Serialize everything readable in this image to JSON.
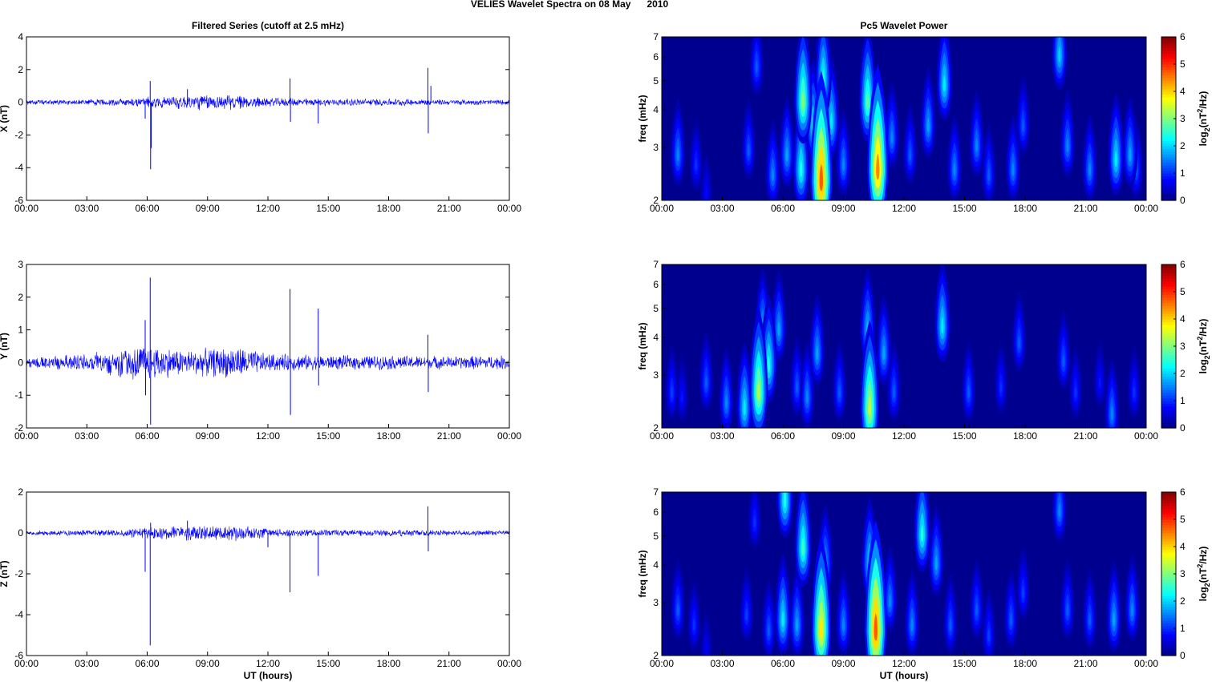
{
  "figure": {
    "suptitle": "VELIES Wavelet Spectra on 08 May      2010",
    "left_title": "Filtered Series (cutoff at 2.5 mHz)",
    "right_title": "Pc5 Wavelet Power",
    "xlabel": "UT (hours)",
    "freq_label": "freq (mHz)",
    "colorbar_label": "log2(nT2/Hz)",
    "colormap": "jet",
    "line_color": "#0000ff"
  },
  "chart_data": [
    {
      "type": "line",
      "ylabel": "X (nT)",
      "x_ticks": [
        "00:00",
        "03:00",
        "06:00",
        "09:00",
        "12:00",
        "15:00",
        "18:00",
        "21:00",
        "00:00"
      ],
      "xlim": [
        0,
        24
      ],
      "ylim": [
        -6,
        4
      ],
      "y_ticks": [
        -6,
        -4,
        -2,
        0,
        2,
        4
      ],
      "baseline_amplitude": [
        [
          0,
          0.12
        ],
        [
          4.5,
          0.2
        ],
        [
          6,
          0.3
        ],
        [
          8.5,
          0.45
        ],
        [
          10.5,
          0.4
        ],
        [
          12,
          0.25
        ],
        [
          15,
          0.2
        ],
        [
          18,
          0.2
        ],
        [
          21,
          0.15
        ],
        [
          24,
          0.15
        ]
      ],
      "spikes": [
        {
          "x": 5.9,
          "y": -1.0
        },
        {
          "x": 6.15,
          "y": 1.3
        },
        {
          "x": 6.17,
          "y": -4.1
        },
        {
          "x": 6.2,
          "y": -2.8
        },
        {
          "x": 8.0,
          "y": 0.8
        },
        {
          "x": 13.1,
          "y": 1.45
        },
        {
          "x": 13.12,
          "y": -1.2
        },
        {
          "x": 14.5,
          "y": -1.3
        },
        {
          "x": 19.95,
          "y": 2.1
        },
        {
          "x": 19.97,
          "y": -1.9
        },
        {
          "x": 20.1,
          "y": 1.0
        }
      ]
    },
    {
      "type": "line",
      "ylabel": "Y (nT)",
      "x_ticks": [
        "00:00",
        "03:00",
        "06:00",
        "09:00",
        "12:00",
        "15:00",
        "18:00",
        "21:00",
        "00:00"
      ],
      "xlim": [
        0,
        24
      ],
      "ylim": [
        -2,
        3
      ],
      "y_ticks": [
        -2,
        -1,
        0,
        1,
        2,
        3
      ],
      "baseline_amplitude": [
        [
          0,
          0.15
        ],
        [
          3,
          0.25
        ],
        [
          5,
          0.45
        ],
        [
          6,
          0.5
        ],
        [
          8,
          0.35
        ],
        [
          10.5,
          0.45
        ],
        [
          12,
          0.25
        ],
        [
          15,
          0.2
        ],
        [
          18,
          0.2
        ],
        [
          21,
          0.18
        ],
        [
          24,
          0.2
        ]
      ],
      "spikes": [
        {
          "x": 5.9,
          "y": 1.3
        },
        {
          "x": 5.92,
          "y": -1.0
        },
        {
          "x": 6.15,
          "y": 2.6
        },
        {
          "x": 6.17,
          "y": -1.9
        },
        {
          "x": 13.1,
          "y": 2.25
        },
        {
          "x": 13.12,
          "y": -1.6
        },
        {
          "x": 14.5,
          "y": 1.65
        },
        {
          "x": 14.52,
          "y": -0.7
        },
        {
          "x": 19.95,
          "y": 0.85
        },
        {
          "x": 19.97,
          "y": -0.9
        },
        {
          "x": 24,
          "y": -0.35
        }
      ]
    },
    {
      "type": "line",
      "ylabel": "Z (nT)",
      "x_ticks": [
        "00:00",
        "03:00",
        "06:00",
        "09:00",
        "12:00",
        "15:00",
        "18:00",
        "21:00",
        "00:00"
      ],
      "xlim": [
        0,
        24
      ],
      "ylim": [
        -6,
        2
      ],
      "y_ticks": [
        -6,
        -4,
        -2,
        0,
        2
      ],
      "baseline_amplitude": [
        [
          0,
          0.1
        ],
        [
          4.5,
          0.15
        ],
        [
          6,
          0.25
        ],
        [
          8,
          0.35
        ],
        [
          10.5,
          0.35
        ],
        [
          12,
          0.2
        ],
        [
          15,
          0.15
        ],
        [
          18,
          0.15
        ],
        [
          21,
          0.12
        ],
        [
          24,
          0.12
        ]
      ],
      "spikes": [
        {
          "x": 5.9,
          "y": -1.9
        },
        {
          "x": 6.15,
          "y": -5.5
        },
        {
          "x": 6.17,
          "y": 0.5
        },
        {
          "x": 8.0,
          "y": 0.6
        },
        {
          "x": 12.0,
          "y": -0.7
        },
        {
          "x": 13.1,
          "y": -2.9
        },
        {
          "x": 14.5,
          "y": -2.1
        },
        {
          "x": 19.95,
          "y": 1.3
        },
        {
          "x": 19.97,
          "y": -0.9
        }
      ]
    },
    {
      "type": "heatmap",
      "ylabel": "freq (mHz)",
      "x_ticks": [
        "00:00",
        "03:00",
        "06:00",
        "09:00",
        "12:00",
        "15:00",
        "18:00",
        "21:00",
        "00:00"
      ],
      "xlim": [
        0,
        24
      ],
      "ylim": [
        2,
        7
      ],
      "y_ticks": [
        2,
        3,
        4,
        5,
        6,
        7
      ],
      "yscale": "log",
      "clim": [
        0,
        6
      ],
      "colorbar_ticks": [
        0,
        1,
        2,
        3,
        4,
        5,
        6
      ],
      "blobs": [
        {
          "t": 0.8,
          "f": 2.8,
          "p": 1.8
        },
        {
          "t": 1.7,
          "f": 2.6,
          "p": 1.2
        },
        {
          "t": 2.2,
          "f": 2.1,
          "p": 0.9
        },
        {
          "t": 4.3,
          "f": 2.9,
          "p": 1.5
        },
        {
          "t": 4.7,
          "f": 5.5,
          "p": 1.5
        },
        {
          "t": 5.5,
          "f": 2.4,
          "p": 1.8
        },
        {
          "t": 6.2,
          "f": 2.8,
          "p": 2.0
        },
        {
          "t": 6.9,
          "f": 2.5,
          "p": 2.8
        },
        {
          "t": 7.0,
          "f": 4.2,
          "p": 3.5
        },
        {
          "t": 7.5,
          "f": 3.5,
          "p": 2.5
        },
        {
          "t": 7.9,
          "f": 2.3,
          "p": 5.5
        },
        {
          "t": 8.0,
          "f": 5.0,
          "p": 2.8
        },
        {
          "t": 8.4,
          "f": 3.6,
          "p": 2.5
        },
        {
          "t": 9.0,
          "f": 2.6,
          "p": 1.8
        },
        {
          "t": 10.2,
          "f": 4.2,
          "p": 3.2
        },
        {
          "t": 10.7,
          "f": 2.5,
          "p": 5.2
        },
        {
          "t": 11.4,
          "f": 3.2,
          "p": 1.8
        },
        {
          "t": 12.3,
          "f": 2.8,
          "p": 1.5
        },
        {
          "t": 13.2,
          "f": 3.5,
          "p": 2.0
        },
        {
          "t": 14.0,
          "f": 4.8,
          "p": 2.5
        },
        {
          "t": 14.5,
          "f": 2.5,
          "p": 1.8
        },
        {
          "t": 15.6,
          "f": 3.0,
          "p": 1.8
        },
        {
          "t": 16.2,
          "f": 2.4,
          "p": 1.5
        },
        {
          "t": 17.4,
          "f": 2.5,
          "p": 1.8
        },
        {
          "t": 17.9,
          "f": 3.5,
          "p": 1.5
        },
        {
          "t": 19.7,
          "f": 6.0,
          "p": 2.3
        },
        {
          "t": 20.1,
          "f": 3.0,
          "p": 1.8
        },
        {
          "t": 21.2,
          "f": 2.5,
          "p": 1.8
        },
        {
          "t": 22.5,
          "f": 2.7,
          "p": 2.5
        },
        {
          "t": 23.2,
          "f": 2.8,
          "p": 2.0
        },
        {
          "t": 23.5,
          "f": 2.5,
          "p": 1.5
        }
      ]
    },
    {
      "type": "heatmap",
      "ylabel": "freq (mHz)",
      "x_ticks": [
        "00:00",
        "03:00",
        "06:00",
        "09:00",
        "12:00",
        "15:00",
        "18:00",
        "21:00",
        "00:00"
      ],
      "xlim": [
        0,
        24
      ],
      "ylim": [
        2,
        7
      ],
      "y_ticks": [
        2,
        3,
        4,
        5,
        6,
        7
      ],
      "yscale": "log",
      "clim": [
        0,
        6
      ],
      "colorbar_ticks": [
        0,
        1,
        2,
        3,
        4,
        5,
        6
      ],
      "blobs": [
        {
          "t": 0.5,
          "f": 2.6,
          "p": 1.3
        },
        {
          "t": 1.0,
          "f": 2.5,
          "p": 1.0
        },
        {
          "t": 2.2,
          "f": 2.8,
          "p": 1.5
        },
        {
          "t": 3.2,
          "f": 2.4,
          "p": 1.8
        },
        {
          "t": 4.1,
          "f": 2.3,
          "p": 2.5
        },
        {
          "t": 4.8,
          "f": 2.6,
          "p": 3.8
        },
        {
          "t": 5.3,
          "f": 3.2,
          "p": 2.8
        },
        {
          "t": 5.0,
          "f": 4.3,
          "p": 2.0
        },
        {
          "t": 5.8,
          "f": 4.2,
          "p": 2.0
        },
        {
          "t": 6.7,
          "f": 2.7,
          "p": 1.5
        },
        {
          "t": 7.2,
          "f": 2.5,
          "p": 1.8
        },
        {
          "t": 7.7,
          "f": 3.5,
          "p": 2.0
        },
        {
          "t": 8.8,
          "f": 2.6,
          "p": 1.5
        },
        {
          "t": 10.2,
          "f": 4.2,
          "p": 2.2
        },
        {
          "t": 10.3,
          "f": 2.3,
          "p": 4.0
        },
        {
          "t": 11.0,
          "f": 3.5,
          "p": 2.0
        },
        {
          "t": 11.5,
          "f": 2.6,
          "p": 1.5
        },
        {
          "t": 13.9,
          "f": 4.3,
          "p": 2.5
        },
        {
          "t": 15.2,
          "f": 2.6,
          "p": 1.5
        },
        {
          "t": 16.8,
          "f": 2.7,
          "p": 1.2
        },
        {
          "t": 17.7,
          "f": 3.8,
          "p": 1.5
        },
        {
          "t": 19.9,
          "f": 3.3,
          "p": 1.5
        },
        {
          "t": 20.5,
          "f": 2.6,
          "p": 1.2
        },
        {
          "t": 21.7,
          "f": 2.8,
          "p": 1.0
        },
        {
          "t": 22.3,
          "f": 2.2,
          "p": 1.8
        },
        {
          "t": 23.4,
          "f": 2.6,
          "p": 1.2
        }
      ]
    },
    {
      "type": "heatmap",
      "ylabel": "freq (mHz)",
      "x_ticks": [
        "00:00",
        "03:00",
        "06:00",
        "09:00",
        "12:00",
        "15:00",
        "18:00",
        "21:00",
        "00:00"
      ],
      "xlim": [
        0,
        24
      ],
      "ylim": [
        2,
        7
      ],
      "y_ticks": [
        2,
        3,
        4,
        5,
        6,
        7
      ],
      "yscale": "log",
      "clim": [
        0,
        6
      ],
      "colorbar_ticks": [
        0,
        1,
        2,
        3,
        4,
        5,
        6
      ],
      "blobs": [
        {
          "t": 0.8,
          "f": 2.8,
          "p": 1.5
        },
        {
          "t": 1.6,
          "f": 2.5,
          "p": 1.2
        },
        {
          "t": 2.2,
          "f": 2.1,
          "p": 0.8
        },
        {
          "t": 4.2,
          "f": 2.7,
          "p": 1.3
        },
        {
          "t": 4.6,
          "f": 5.5,
          "p": 1.2
        },
        {
          "t": 5.3,
          "f": 2.4,
          "p": 1.5
        },
        {
          "t": 6.0,
          "f": 2.6,
          "p": 2.5
        },
        {
          "t": 6.1,
          "f": 6.5,
          "p": 2.8
        },
        {
          "t": 6.7,
          "f": 2.5,
          "p": 2.0
        },
        {
          "t": 7.0,
          "f": 4.5,
          "p": 3.0
        },
        {
          "t": 7.9,
          "f": 2.4,
          "p": 4.5
        },
        {
          "t": 8.1,
          "f": 4.0,
          "p": 2.0
        },
        {
          "t": 9.0,
          "f": 2.5,
          "p": 1.8
        },
        {
          "t": 10.3,
          "f": 4.0,
          "p": 2.5
        },
        {
          "t": 10.6,
          "f": 2.4,
          "p": 5.5
        },
        {
          "t": 11.3,
          "f": 3.0,
          "p": 1.8
        },
        {
          "t": 12.4,
          "f": 2.5,
          "p": 1.8
        },
        {
          "t": 12.9,
          "f": 5.0,
          "p": 2.8
        },
        {
          "t": 13.6,
          "f": 4.0,
          "p": 2.0
        },
        {
          "t": 14.3,
          "f": 2.5,
          "p": 1.5
        },
        {
          "t": 15.6,
          "f": 2.8,
          "p": 1.5
        },
        {
          "t": 16.2,
          "f": 2.3,
          "p": 1.3
        },
        {
          "t": 17.3,
          "f": 2.6,
          "p": 1.5
        },
        {
          "t": 17.9,
          "f": 3.2,
          "p": 1.3
        },
        {
          "t": 19.7,
          "f": 6.0,
          "p": 1.8
        },
        {
          "t": 20.1,
          "f": 2.8,
          "p": 1.5
        },
        {
          "t": 21.2,
          "f": 2.6,
          "p": 1.5
        },
        {
          "t": 22.4,
          "f": 2.6,
          "p": 2.0
        },
        {
          "t": 23.3,
          "f": 2.8,
          "p": 1.8
        }
      ]
    }
  ]
}
